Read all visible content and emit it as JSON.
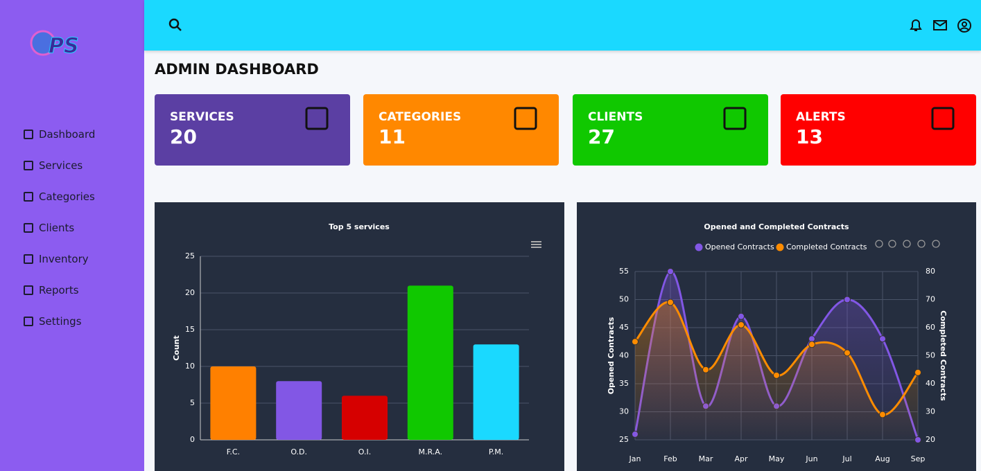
{
  "logo": "PS",
  "nav": [
    "Dashboard",
    "Services",
    "Categories",
    "Clients",
    "Inventory",
    "Reports",
    "Settings"
  ],
  "page_title": "ADMIN DASHBOARD",
  "cards": [
    {
      "label": "SERVICES",
      "value": 20,
      "color": "#5b3fa3"
    },
    {
      "label": "CATEGORIES",
      "value": 11,
      "color": "#ff8800"
    },
    {
      "label": "CLIENTS",
      "value": 27,
      "color": "#10c800"
    },
    {
      "label": "ALERTS",
      "value": 13,
      "color": "#ff0000"
    }
  ],
  "chart_data": [
    {
      "type": "bar",
      "title": "Top 5 services",
      "y_label": "Count",
      "categories": [
        "F.C.",
        "O.D.",
        "O.I.",
        "M.R.A.",
        "P.M."
      ],
      "values": [
        10,
        8,
        6,
        21,
        13
      ],
      "colors": [
        "#ff8000",
        "#8257e5",
        "#d60000",
        "#10c800",
        "#1ad9ff"
      ],
      "ylim": [
        0,
        25
      ],
      "yticks": [
        0,
        5,
        10,
        15,
        20,
        25
      ],
      "grid": true
    },
    {
      "type": "line",
      "title": "Opened and Completed Contracts",
      "y_label": "Opened Contracts",
      "y2_label": "Completed Contracts",
      "categories": [
        "Jan",
        "Feb",
        "Mar",
        "Apr",
        "May",
        "Jun",
        "Jul",
        "Aug",
        "Sep"
      ],
      "series": [
        {
          "name": "Opened Contracts",
          "color": "#8257e5",
          "values": [
            26,
            55,
            31,
            47,
            31,
            43,
            50,
            43,
            25
          ]
        },
        {
          "name": "Completed Contracts",
          "color": "#ff8c00",
          "axis": "y2",
          "values": [
            55,
            69,
            45,
            61,
            43,
            54,
            51,
            29,
            44
          ]
        }
      ],
      "ylim": [
        25,
        55
      ],
      "yticks": [
        25,
        30,
        35,
        40,
        45,
        50,
        55
      ],
      "y2lim": [
        20,
        80
      ],
      "y2ticks": [
        20,
        30,
        40,
        50,
        60,
        70,
        80
      ],
      "grid": true
    }
  ]
}
